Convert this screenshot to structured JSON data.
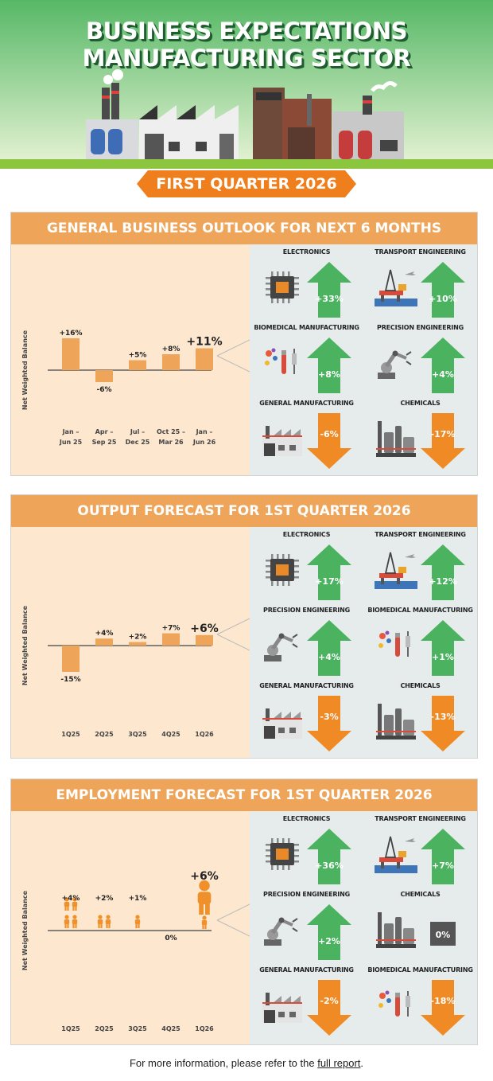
{
  "header": {
    "title_line1": "BUSINESS EXPECTATIONS",
    "title_line2": "MANUFACTURING SECTOR",
    "quarter_label": "FIRST QUARTER 2026"
  },
  "footer": {
    "text": "For more information, please refer to the ",
    "link_label": "full report",
    "period": "."
  },
  "colors": {
    "green": "#5fbe6c",
    "orange": "#ef7e1d",
    "bar": "#eea55a",
    "panel_bg": "#fde7cf",
    "sector_bg": "#e6ecec",
    "arrow_up": "#4bb260",
    "arrow_down": "#f08a25",
    "neutral_box": "#555555"
  },
  "sections": [
    {
      "id": "outlook",
      "title": "GENERAL BUSINESS OUTLOOK FOR NEXT 6 MONTHS",
      "ylabel": "Net Weighted Balance",
      "sectors": [
        {
          "name": "ELECTRONICS",
          "icon": "chip-icon",
          "value": "+33%",
          "dir": "up"
        },
        {
          "name": "TRANSPORT ENGINEERING",
          "icon": "oil-rig-icon",
          "value": "+10%",
          "dir": "up"
        },
        {
          "name": "BIOMEDICAL MANUFACTURING",
          "icon": "biomedical-icon",
          "value": "+8%",
          "dir": "up"
        },
        {
          "name": "PRECISION ENGINEERING",
          "icon": "robot-arm-icon",
          "value": "+4%",
          "dir": "up"
        },
        {
          "name": "GENERAL MANUFACTURING",
          "icon": "factory-icon",
          "value": "-6%",
          "dir": "down"
        },
        {
          "name": "CHEMICALS",
          "icon": "chemical-plant-icon",
          "value": "-17%",
          "dir": "down"
        }
      ]
    },
    {
      "id": "output",
      "title": "OUTPUT FORECAST FOR 1ST QUARTER 2026",
      "ylabel": "Net Weighted Balance",
      "sectors": [
        {
          "name": "ELECTRONICS",
          "icon": "chip-icon",
          "value": "+17%",
          "dir": "up"
        },
        {
          "name": "TRANSPORT ENGINEERING",
          "icon": "oil-rig-icon",
          "value": "+12%",
          "dir": "up"
        },
        {
          "name": "PRECISION ENGINEERING",
          "icon": "robot-arm-icon",
          "value": "+4%",
          "dir": "up"
        },
        {
          "name": "BIOMEDICAL MANUFACTURING",
          "icon": "biomedical-icon",
          "value": "+1%",
          "dir": "up"
        },
        {
          "name": "GENERAL MANUFACTURING",
          "icon": "factory-icon",
          "value": "-3%",
          "dir": "down"
        },
        {
          "name": "CHEMICALS",
          "icon": "chemical-plant-icon",
          "value": "-13%",
          "dir": "down"
        }
      ]
    },
    {
      "id": "employment",
      "title": "EMPLOYMENT FORECAST FOR 1ST QUARTER 2026",
      "ylabel": "Net Weighted Balance",
      "sectors": [
        {
          "name": "ELECTRONICS",
          "icon": "chip-icon",
          "value": "+36%",
          "dir": "up"
        },
        {
          "name": "TRANSPORT ENGINEERING",
          "icon": "oil-rig-icon",
          "value": "+7%",
          "dir": "up"
        },
        {
          "name": "PRECISION ENGINEERING",
          "icon": "robot-arm-icon",
          "value": "+2%",
          "dir": "up"
        },
        {
          "name": "CHEMICALS",
          "icon": "chemical-plant-icon",
          "value": "0%",
          "dir": "flat"
        },
        {
          "name": "GENERAL MANUFACTURING",
          "icon": "factory-icon",
          "value": "-2%",
          "dir": "down"
        },
        {
          "name": "BIOMEDICAL MANUFACTURING",
          "icon": "biomedical-icon",
          "value": "-18%",
          "dir": "down"
        }
      ]
    }
  ],
  "chart_data": [
    {
      "type": "bar",
      "title": "GENERAL BUSINESS OUTLOOK FOR NEXT 6 MONTHS",
      "ylabel": "Net Weighted Balance",
      "categories": [
        [
          "Jan –",
          "Jun 25"
        ],
        [
          "Apr –",
          "Sep 25"
        ],
        [
          "Jul –",
          "Dec 25"
        ],
        [
          "Oct 25 –",
          "Mar 26"
        ],
        [
          "Jan –",
          "Jun 26"
        ]
      ],
      "values": [
        16,
        -6,
        5,
        8,
        11
      ],
      "labels": [
        "+16%",
        "-6%",
        "+5%",
        "+8%",
        "+11%"
      ],
      "highlight_last": true
    },
    {
      "type": "bar",
      "title": "OUTPUT FORECAST FOR 1ST QUARTER 2026",
      "ylabel": "Net Weighted Balance",
      "categories": [
        [
          "1Q25"
        ],
        [
          "2Q25"
        ],
        [
          "3Q25"
        ],
        [
          "4Q25"
        ],
        [
          "1Q26"
        ]
      ],
      "values": [
        -15,
        4,
        2,
        7,
        6
      ],
      "labels": [
        "-15%",
        "+4%",
        "+2%",
        "+7%",
        "+6%"
      ],
      "highlight_last": true
    },
    {
      "type": "pictogram",
      "title": "EMPLOYMENT FORECAST FOR 1ST QUARTER 2026",
      "ylabel": "Net Weighted Balance",
      "categories": [
        [
          "1Q25"
        ],
        [
          "2Q25"
        ],
        [
          "3Q25"
        ],
        [
          "4Q25"
        ],
        [
          "1Q26"
        ]
      ],
      "values": [
        4,
        2,
        1,
        0,
        6
      ],
      "labels": [
        "+4%",
        "+2%",
        "+1%",
        "0%",
        "+6%"
      ],
      "highlight_last": true
    }
  ]
}
